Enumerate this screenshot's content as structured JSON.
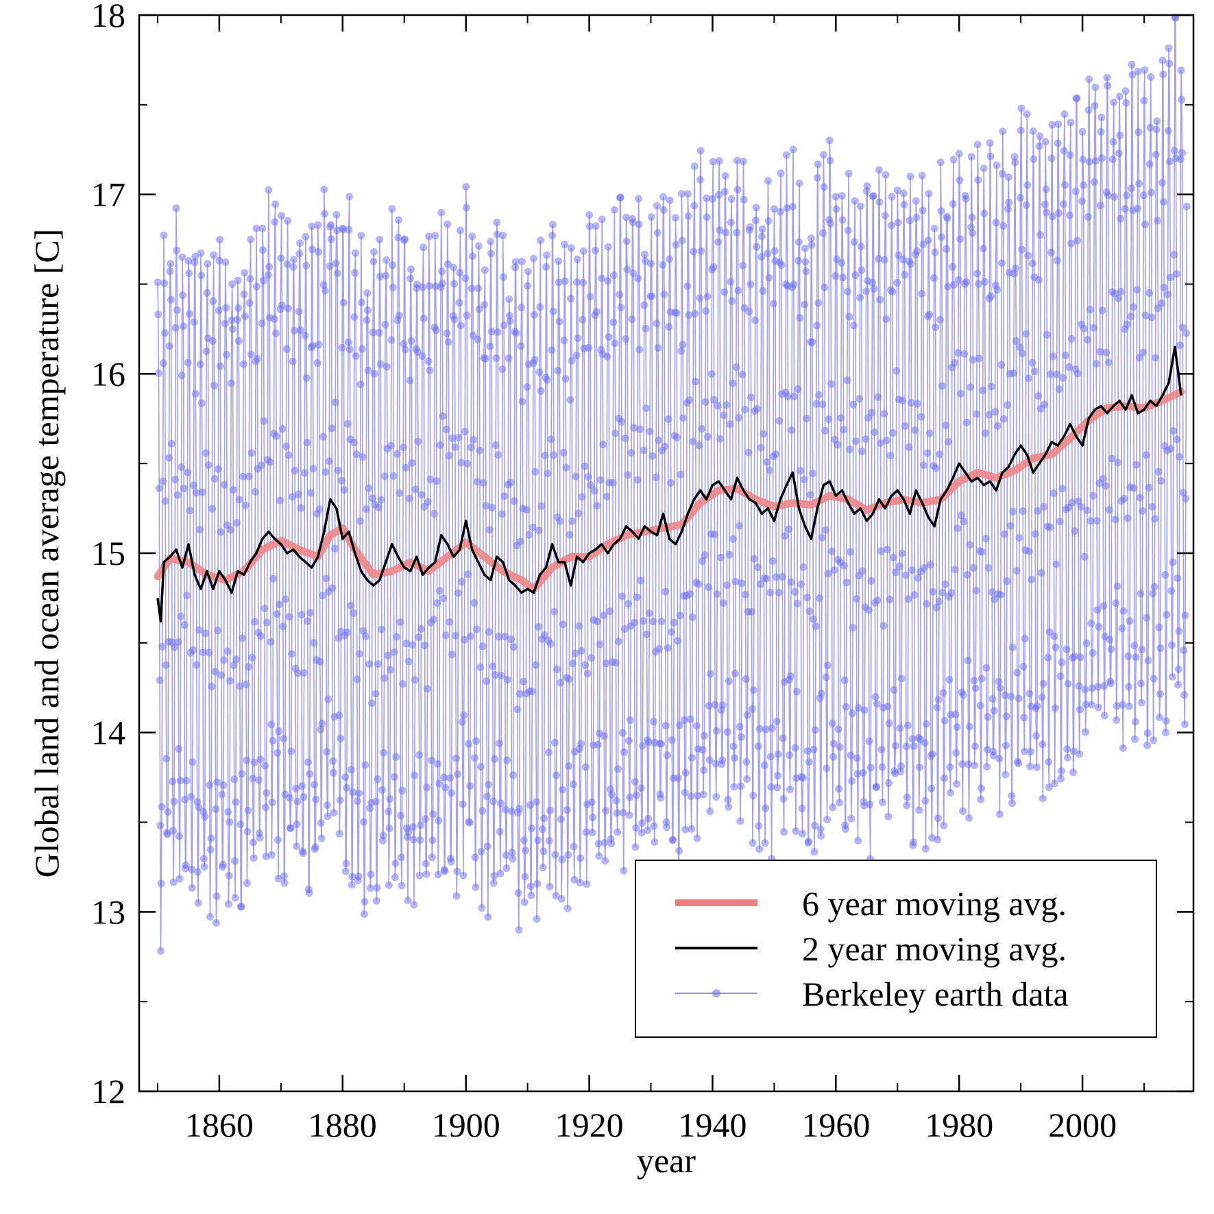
{
  "chart_data": {
    "type": "line",
    "xlabel": "year",
    "ylabel": "Global land and ocean average temperature [C]",
    "xlim": [
      1847,
      2018
    ],
    "ylim": [
      12,
      18
    ],
    "xticks": [
      1860,
      1880,
      1900,
      1920,
      1940,
      1960,
      1980,
      2000
    ],
    "yticks": [
      12,
      13,
      14,
      15,
      16,
      17,
      18
    ],
    "grid": false,
    "legend_position": "bottom-right",
    "colors": {
      "monthly": "#6b6bef",
      "six_year": "#f08080",
      "two_year": "#000000"
    },
    "monthly_model": {
      "note_series": "Berkeley earth data",
      "seasonal_amplitude": 1.75,
      "start_year": 1850,
      "end_year": 2016
    },
    "series": [
      {
        "name": "6 year moving avg.",
        "x": [
          1850,
          1852,
          1855,
          1858,
          1861,
          1864,
          1867,
          1870,
          1873,
          1876,
          1878,
          1880,
          1882,
          1885,
          1888,
          1891,
          1894,
          1897,
          1900,
          1903,
          1906,
          1909,
          1911,
          1914,
          1917,
          1920,
          1923,
          1926,
          1929,
          1932,
          1935,
          1938,
          1941,
          1944,
          1947,
          1950,
          1953,
          1956,
          1959,
          1962,
          1965,
          1968,
          1971,
          1974,
          1977,
          1980,
          1983,
          1986,
          1989,
          1992,
          1995,
          1998,
          2001,
          2004,
          2007,
          2010,
          2013,
          2016
        ],
        "values": [
          14.87,
          14.97,
          14.95,
          14.88,
          14.85,
          14.9,
          15.02,
          15.07,
          15.02,
          14.98,
          15.1,
          15.14,
          15.02,
          14.88,
          14.9,
          14.95,
          14.9,
          14.98,
          15.06,
          14.98,
          14.9,
          14.85,
          14.8,
          14.92,
          14.98,
          14.98,
          15.05,
          15.1,
          15.12,
          15.14,
          15.16,
          15.28,
          15.35,
          15.36,
          15.3,
          15.26,
          15.28,
          15.27,
          15.32,
          15.3,
          15.24,
          15.28,
          15.3,
          15.28,
          15.3,
          15.4,
          15.45,
          15.42,
          15.46,
          15.53,
          15.55,
          15.64,
          15.74,
          15.81,
          15.82,
          15.81,
          15.85,
          15.9
        ]
      },
      {
        "name": "2 year moving avg.",
        "x": [
          1850,
          1850.5,
          1851,
          1852,
          1853,
          1854,
          1855,
          1856,
          1857,
          1858,
          1859,
          1860,
          1861,
          1862,
          1863,
          1864,
          1865,
          1866,
          1867,
          1868,
          1869,
          1870,
          1871,
          1872,
          1873,
          1874,
          1875,
          1876,
          1877,
          1878,
          1879,
          1880,
          1881,
          1882,
          1883,
          1884,
          1885,
          1886,
          1887,
          1888,
          1889,
          1890,
          1891,
          1892,
          1893,
          1894,
          1895,
          1896,
          1897,
          1898,
          1899,
          1900,
          1901,
          1902,
          1903,
          1904,
          1905,
          1906,
          1907,
          1908,
          1909,
          1910,
          1911,
          1912,
          1913,
          1914,
          1915,
          1916,
          1917,
          1918,
          1919,
          1920,
          1921,
          1922,
          1923,
          1924,
          1925,
          1926,
          1927,
          1928,
          1929,
          1930,
          1931,
          1932,
          1933,
          1934,
          1935,
          1936,
          1937,
          1938,
          1939,
          1940,
          1941,
          1942,
          1943,
          1944,
          1945,
          1946,
          1947,
          1948,
          1949,
          1950,
          1951,
          1952,
          1953,
          1954,
          1955,
          1956,
          1957,
          1958,
          1959,
          1960,
          1961,
          1962,
          1963,
          1964,
          1965,
          1966,
          1967,
          1968,
          1969,
          1970,
          1971,
          1972,
          1973,
          1974,
          1975,
          1976,
          1977,
          1978,
          1979,
          1980,
          1981,
          1982,
          1983,
          1984,
          1985,
          1986,
          1987,
          1988,
          1989,
          1990,
          1991,
          1992,
          1993,
          1994,
          1995,
          1996,
          1997,
          1998,
          1999,
          2000,
          2001,
          2002,
          2003,
          2004,
          2005,
          2006,
          2007,
          2008,
          2009,
          2010,
          2011,
          2012,
          2013,
          2014,
          2015,
          2016
        ],
        "values": [
          14.75,
          14.62,
          14.95,
          14.98,
          15.02,
          14.92,
          15.05,
          14.88,
          14.8,
          14.9,
          14.8,
          14.9,
          14.85,
          14.78,
          14.9,
          14.88,
          14.95,
          15.0,
          15.08,
          15.12,
          15.08,
          15.05,
          15.0,
          15.02,
          14.98,
          14.95,
          14.92,
          14.98,
          15.12,
          15.3,
          15.25,
          15.08,
          15.12,
          15.0,
          14.9,
          14.85,
          14.82,
          14.85,
          14.95,
          15.05,
          14.98,
          14.92,
          14.9,
          14.98,
          14.88,
          14.92,
          14.95,
          15.1,
          15.05,
          14.98,
          15.02,
          15.18,
          15.02,
          14.95,
          14.88,
          14.85,
          14.98,
          14.95,
          14.85,
          14.82,
          14.78,
          14.8,
          14.78,
          14.88,
          14.92,
          15.05,
          14.95,
          14.95,
          14.82,
          14.98,
          14.95,
          15.0,
          15.02,
          15.05,
          15.0,
          15.05,
          15.08,
          15.15,
          15.12,
          15.08,
          15.15,
          15.12,
          15.1,
          15.22,
          15.08,
          15.05,
          15.12,
          15.22,
          15.3,
          15.35,
          15.3,
          15.38,
          15.4,
          15.35,
          15.3,
          15.42,
          15.35,
          15.3,
          15.28,
          15.22,
          15.25,
          15.18,
          15.3,
          15.38,
          15.45,
          15.25,
          15.15,
          15.08,
          15.25,
          15.38,
          15.4,
          15.32,
          15.35,
          15.28,
          15.22,
          15.25,
          15.18,
          15.22,
          15.3,
          15.25,
          15.32,
          15.35,
          15.3,
          15.22,
          15.35,
          15.28,
          15.2,
          15.15,
          15.3,
          15.35,
          15.42,
          15.5,
          15.45,
          15.4,
          15.42,
          15.38,
          15.4,
          15.35,
          15.45,
          15.48,
          15.55,
          15.6,
          15.55,
          15.45,
          15.5,
          15.55,
          15.62,
          15.6,
          15.65,
          15.72,
          15.65,
          15.6,
          15.75,
          15.8,
          15.82,
          15.78,
          15.82,
          15.85,
          15.8,
          15.88,
          15.78,
          15.8,
          15.85,
          15.82,
          15.88,
          15.95,
          16.15,
          15.88
        ]
      },
      {
        "name": "Berkeley earth data"
      }
    ]
  }
}
